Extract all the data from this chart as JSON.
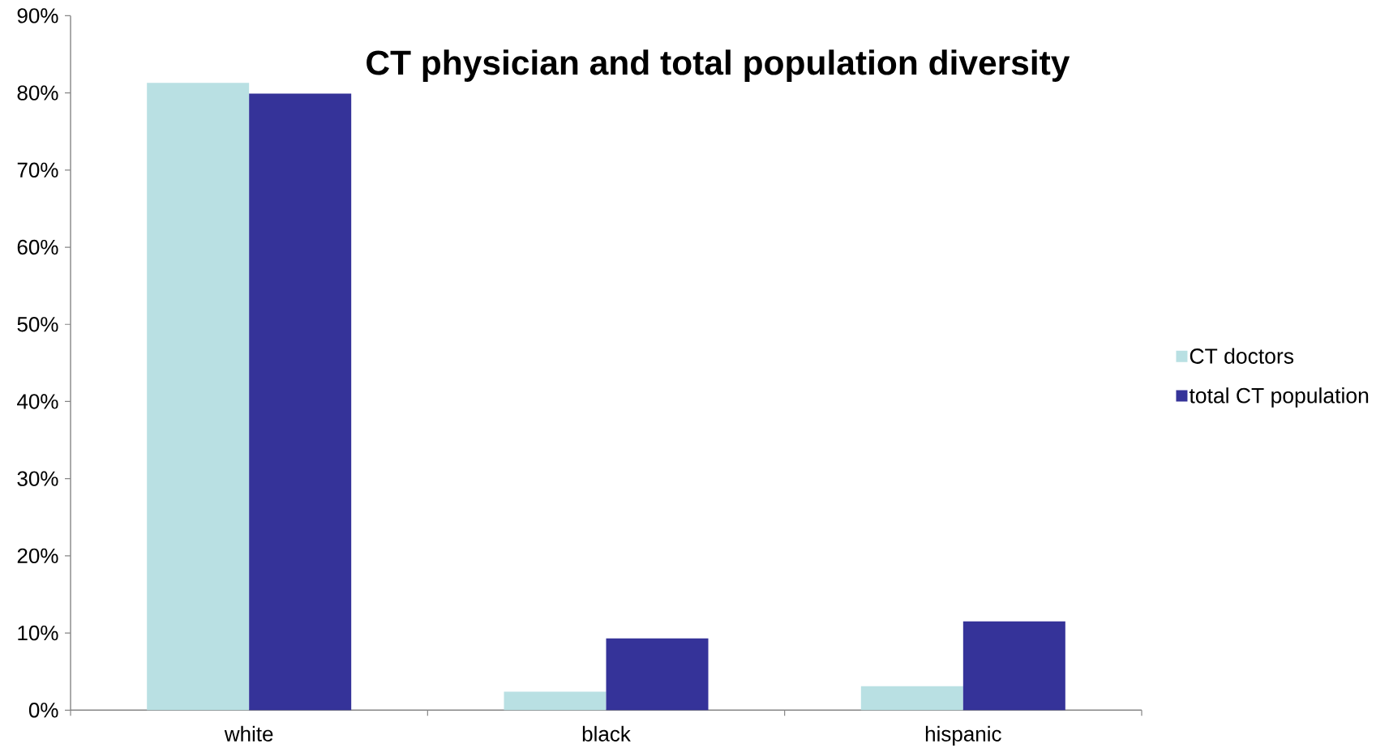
{
  "chart_data": {
    "type": "bar",
    "title": "CT physician and total population diversity",
    "categories": [
      "white",
      "black",
      "hispanic"
    ],
    "series": [
      {
        "name": "CT doctors",
        "color": "#b9e0e3",
        "values": [
          81.3,
          2.4,
          3.1
        ]
      },
      {
        "name": "total CT population",
        "color": "#353399",
        "values": [
          79.9,
          9.3,
          11.5
        ]
      }
    ],
    "ylim": [
      0,
      90
    ],
    "yticks": [
      {
        "value": 0,
        "label": "0%"
      },
      {
        "value": 10,
        "label": "10%"
      },
      {
        "value": 20,
        "label": "20%"
      },
      {
        "value": 30,
        "label": "30%"
      },
      {
        "value": 40,
        "label": "40%"
      },
      {
        "value": 50,
        "label": "50%"
      },
      {
        "value": 60,
        "label": "60%"
      },
      {
        "value": 70,
        "label": "70%"
      },
      {
        "value": 80,
        "label": "80%"
      },
      {
        "value": 90,
        "label": "90%"
      }
    ],
    "legend": "right"
  }
}
